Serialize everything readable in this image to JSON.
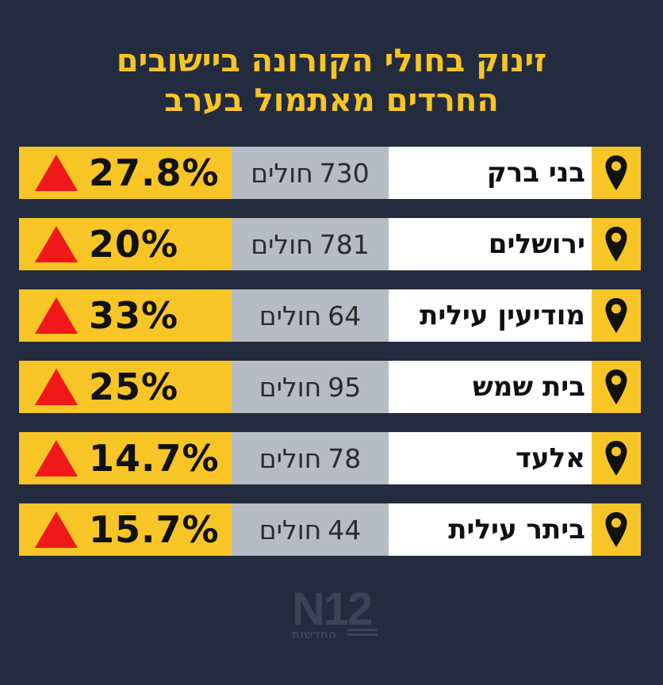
{
  "title": {
    "line1": "זינוק בחולי הקורונה ביישובים",
    "line2": "החרדים מאתמול בערב"
  },
  "rows": [
    {
      "city": "בני ברק",
      "count": "730",
      "unit": "חולים",
      "percent": "27.8%"
    },
    {
      "city": "ירושלים",
      "count": "781",
      "unit": "חולים",
      "percent": "20%"
    },
    {
      "city": "מודיעין עילית",
      "count": "64",
      "unit": "חולים",
      "percent": "33%"
    },
    {
      "city": "בית שמש",
      "count": "95",
      "unit": "חולים",
      "percent": "25%"
    },
    {
      "city": "אלעד",
      "count": "78",
      "unit": "חולים",
      "percent": "14.7%"
    },
    {
      "city": "ביתר עילית",
      "count": "44",
      "unit": "חולים",
      "percent": "15.7%"
    }
  ],
  "logo": {
    "brand": "N12",
    "sub": "החדשות"
  },
  "colors": {
    "background": "#232b3e",
    "accent": "#f7c525",
    "up_arrow": "#f01818",
    "count_bg": "#b6bbc4"
  },
  "icons": {
    "row_icon": "location-pin-icon",
    "trend_icon": "up-triangle-icon"
  }
}
